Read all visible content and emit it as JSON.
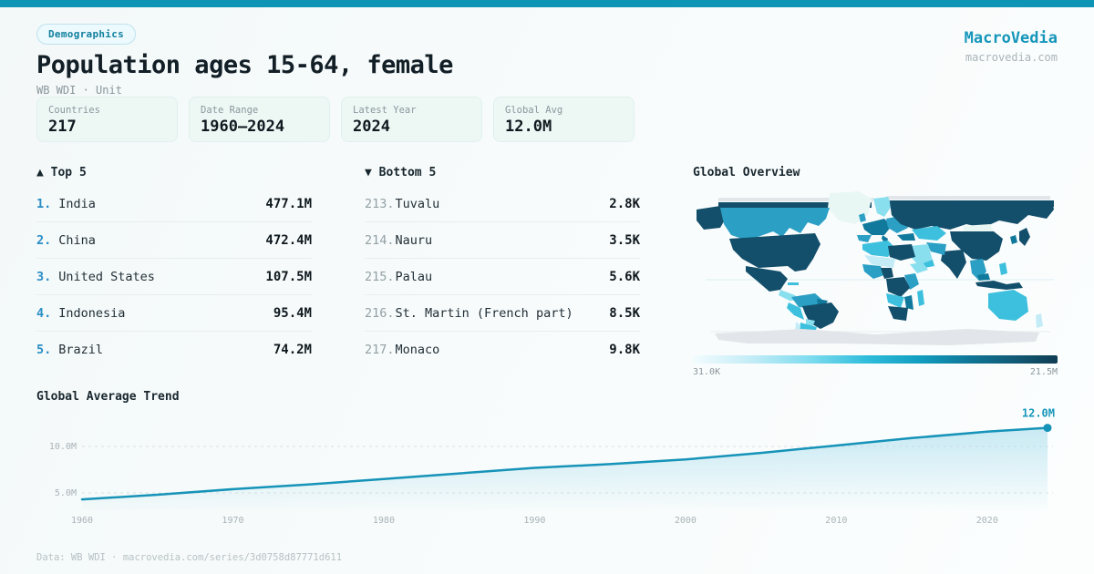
{
  "header": {
    "badge": "Demographics",
    "title": "Population ages 15-64, female",
    "subtitle": "WB WDI · Unit",
    "brand": "MacroVedia",
    "brand_url": "macrovedia.com"
  },
  "stats": [
    {
      "label": "Countries",
      "value": "217"
    },
    {
      "label": "Date Range",
      "value": "1960–2024"
    },
    {
      "label": "Latest Year",
      "value": "2024"
    },
    {
      "label": "Global Avg",
      "value": "12.0M"
    }
  ],
  "top5": {
    "arrow": "▲",
    "title": "Top 5",
    "rows": [
      {
        "rank": "1.",
        "name": "India",
        "value": "477.1M"
      },
      {
        "rank": "2.",
        "name": "China",
        "value": "472.4M"
      },
      {
        "rank": "3.",
        "name": "United States",
        "value": "107.5M"
      },
      {
        "rank": "4.",
        "name": "Indonesia",
        "value": "95.4M"
      },
      {
        "rank": "5.",
        "name": "Brazil",
        "value": "74.2M"
      }
    ]
  },
  "bottom5": {
    "arrow": "▼",
    "title": "Bottom 5",
    "rows": [
      {
        "rank": "213.",
        "name": "Tuvalu",
        "value": "2.8K"
      },
      {
        "rank": "214.",
        "name": "Nauru",
        "value": "3.5K"
      },
      {
        "rank": "215.",
        "name": "Palau",
        "value": "5.6K"
      },
      {
        "rank": "216.",
        "name": "St. Martin (French part)",
        "value": "8.5K"
      },
      {
        "rank": "217.",
        "name": "Monaco",
        "value": "9.8K"
      }
    ]
  },
  "map": {
    "title": "Global Overview",
    "scale_min": "31.0K",
    "scale_max": "21.5M",
    "palette": [
      "#e9f7f4",
      "#c3ecf7",
      "#8adfef",
      "#3dc0dd",
      "#2b9fc4",
      "#11799b",
      "#134f6b",
      "#e2e6ea"
    ]
  },
  "trend": {
    "title": "Global Average Trend"
  },
  "chart_data": [
    {
      "type": "area",
      "title": "Global Average Trend",
      "x": [
        1960,
        1965,
        1970,
        1975,
        1980,
        1985,
        1990,
        1995,
        2000,
        2005,
        2010,
        2015,
        2020,
        2024
      ],
      "y": [
        4.3,
        4.8,
        5.4,
        5.9,
        6.5,
        7.1,
        7.7,
        8.1,
        8.6,
        9.3,
        10.1,
        10.9,
        11.6,
        12.0
      ],
      "unit": "M",
      "yticks": [
        {
          "v": 5,
          "label": "5.0M"
        },
        {
          "v": 10,
          "label": "10.0M"
        }
      ],
      "xticks": [
        1960,
        1970,
        1980,
        1990,
        2000,
        2010,
        2020
      ],
      "end_label": "12.0M",
      "xlim": [
        1960,
        2024
      ],
      "line_color": "#1693b8",
      "grid": "dashed-horizontal"
    },
    {
      "type": "choropleth-map",
      "title": "Global Overview",
      "scale_min_label": "31.0K",
      "scale_max_label": "21.5M",
      "legend_position": "bottom"
    }
  ],
  "footer": {
    "text": "Data: WB WDI · macrovedia.com/series/3d0758d87771d611"
  }
}
